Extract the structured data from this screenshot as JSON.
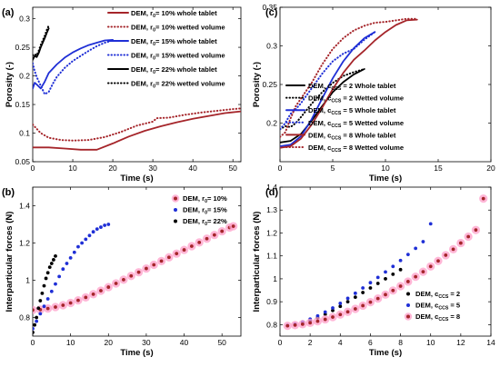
{
  "chart_data": [
    {
      "panel": "(a)",
      "type": "line",
      "xlabel": "Time (s)",
      "ylabel": "Porosity (-)",
      "xlim": [
        0,
        52
      ],
      "ylim": [
        0.05,
        0.32
      ],
      "xticks": [
        "0",
        "10",
        "20",
        "30",
        "40",
        "50"
      ],
      "yticks": [
        "0.05",
        "0.1",
        "0.15",
        "0.2",
        "0.25",
        "0.3"
      ],
      "legend_position": "top-right",
      "series": [
        {
          "name": "DEM, r_0= 10% whole tablet",
          "label_pre": "DEM, r",
          "label_sub": "0",
          "label_post": "= 10% whole tablet",
          "color": "#a5252a",
          "style": "solid",
          "x": [
            0,
            4,
            8,
            12,
            16,
            20,
            24,
            28,
            32,
            36,
            40,
            44,
            48,
            52
          ],
          "y": [
            0.075,
            0.075,
            0.073,
            0.071,
            0.071,
            0.082,
            0.094,
            0.104,
            0.112,
            0.119,
            0.125,
            0.13,
            0.135,
            0.138
          ]
        },
        {
          "name": "DEM, r_0= 10% wetted volume",
          "label_pre": "DEM, r",
          "label_sub": "0",
          "label_post": "= 10% wetted volume",
          "color": "#a5252a",
          "style": "dotted",
          "x": [
            0,
            2,
            4,
            7,
            10,
            14,
            18,
            22,
            26,
            30,
            31,
            34,
            38,
            42,
            46,
            50,
            52
          ],
          "y": [
            0.115,
            0.1,
            0.092,
            0.088,
            0.087,
            0.088,
            0.093,
            0.102,
            0.113,
            0.12,
            0.126,
            0.127,
            0.132,
            0.136,
            0.139,
            0.142,
            0.143
          ]
        },
        {
          "name": "DEM, r_0= 15% whole tablet",
          "label_pre": "DEM, r",
          "label_sub": "0",
          "label_post": "= 15% whole tablet",
          "color": "#1f2fd6",
          "style": "solid",
          "x": [
            0,
            0.5,
            1,
            2,
            3,
            4,
            6,
            8,
            10,
            12,
            14,
            16,
            18,
            20
          ],
          "y": [
            0.178,
            0.188,
            0.185,
            0.178,
            0.19,
            0.205,
            0.22,
            0.232,
            0.241,
            0.248,
            0.254,
            0.258,
            0.262,
            0.263
          ]
        },
        {
          "name": "DEM, r_0= 15% wetted volume",
          "label_pre": "DEM, r",
          "label_sub": "0",
          "label_post": "= 15% wetted volume",
          "color": "#1f2fd6",
          "style": "dotted",
          "x": [
            0,
            0.5,
            1,
            2,
            3,
            4,
            5,
            6,
            8,
            10,
            12,
            14,
            16,
            18,
            20
          ],
          "y": [
            0.222,
            0.208,
            0.198,
            0.183,
            0.168,
            0.172,
            0.186,
            0.198,
            0.214,
            0.226,
            0.235,
            0.244,
            0.252,
            0.258,
            0.262
          ]
        },
        {
          "name": "DEM, r_0= 22% whole tablet",
          "label_pre": "DEM, r",
          "label_sub": "0",
          "label_post": "= 22% whole tablet",
          "color": "#000000",
          "style": "solid",
          "x": [
            0,
            0.5,
            1,
            1.5,
            2,
            2.5,
            3,
            3.5,
            4
          ],
          "y": [
            0.228,
            0.235,
            0.233,
            0.24,
            0.25,
            0.258,
            0.266,
            0.275,
            0.283
          ]
        },
        {
          "name": "DEM, r_0= 22% wetted volume",
          "label_pre": "DEM, r",
          "label_sub": "0",
          "label_post": "= 22% wetted volume",
          "color": "#000000",
          "style": "dotted",
          "x": [
            0,
            0.5,
            1,
            1.5,
            2,
            2.5,
            3,
            3.5,
            4
          ],
          "y": [
            0.236,
            0.238,
            0.236,
            0.244,
            0.254,
            0.262,
            0.27,
            0.28,
            0.288
          ]
        }
      ]
    },
    {
      "panel": "(b)",
      "type": "scatter",
      "xlabel": "Time (s)",
      "ylabel": "Interparticular forces (N)",
      "xlim": [
        0,
        55
      ],
      "ylim": [
        0.7,
        1.5
      ],
      "xticks": [
        "0",
        "10",
        "20",
        "30",
        "40",
        "50"
      ],
      "yticks": [
        "0.8",
        "1",
        "1.2",
        "1.4"
      ],
      "legend_position": "top-right",
      "series": [
        {
          "name": "DEM, r_0= 10%",
          "label_pre": "DEM, r",
          "label_sub": "0",
          "label_post": "= 10%",
          "color": "#a5252a",
          "halo": "#ff9fc9",
          "x": [
            0,
            2,
            4,
            6,
            8,
            10,
            12,
            14,
            16,
            18,
            20,
            22,
            24,
            26,
            28,
            30,
            32,
            34,
            36,
            38,
            40,
            42,
            44,
            46,
            48,
            50,
            52,
            53
          ],
          "y": [
            0.84,
            0.842,
            0.848,
            0.856,
            0.866,
            0.878,
            0.892,
            0.908,
            0.925,
            0.944,
            0.963,
            0.983,
            1.003,
            1.023,
            1.043,
            1.063,
            1.083,
            1.103,
            1.123,
            1.143,
            1.163,
            1.183,
            1.203,
            1.223,
            1.243,
            1.263,
            1.283,
            1.29
          ]
        },
        {
          "name": "DEM, r_0= 15%",
          "label_pre": "DEM, r",
          "label_sub": "0",
          "label_post": "= 15%",
          "color": "#1f2fd6",
          "x": [
            0,
            1,
            2,
            3,
            4,
            5,
            6,
            7,
            8,
            9,
            10,
            11,
            12,
            13,
            14,
            15,
            16,
            17,
            18,
            19,
            20
          ],
          "y": [
            0.74,
            0.78,
            0.82,
            0.86,
            0.9,
            0.94,
            0.98,
            1.02,
            1.06,
            1.09,
            1.12,
            1.15,
            1.18,
            1.2,
            1.22,
            1.24,
            1.26,
            1.275,
            1.285,
            1.295,
            1.3
          ]
        },
        {
          "name": "DEM, r_0= 22%",
          "label_pre": "DEM, r",
          "label_sub": "0",
          "label_post": "= 22%",
          "color": "#000000",
          "x": [
            0,
            0.5,
            1,
            1.5,
            2,
            2.5,
            3,
            3.5,
            4,
            4.5,
            5,
            5.5,
            6
          ],
          "y": [
            0.72,
            0.76,
            0.8,
            0.85,
            0.89,
            0.93,
            0.97,
            1.01,
            1.04,
            1.07,
            1.09,
            1.11,
            1.13
          ]
        }
      ]
    },
    {
      "panel": "(c)",
      "type": "line",
      "xlabel": "Time (s)",
      "ylabel": "Porosity (-)",
      "xlim": [
        0,
        20
      ],
      "ylim": [
        0.15,
        0.35
      ],
      "xticks": [
        "0",
        "5",
        "10",
        "15",
        "20"
      ],
      "yticks": [
        "0.2",
        "0.25",
        "0.3",
        "0.35"
      ],
      "legend_position": "bottom-left",
      "series": [
        {
          "name": "DEM, c_CCS = 2 Whole tablet",
          "label_pre": "DEM, c",
          "label_sub": "CCS",
          "label_post": " = 2 Whole tablet",
          "color": "#000000",
          "style": "solid",
          "x": [
            0,
            1,
            2,
            3,
            4,
            5,
            6,
            7,
            8
          ],
          "y": [
            0.175,
            0.177,
            0.186,
            0.203,
            0.222,
            0.24,
            0.253,
            0.263,
            0.27
          ]
        },
        {
          "name": "DEM, c_CCS = 2 Wetted volume",
          "label_pre": "DEM, c",
          "label_sub": "CCS",
          "label_post": " = 2 Wetted volume",
          "color": "#000000",
          "style": "dotted",
          "x": [
            0,
            0.5,
            1,
            1.5,
            2,
            3,
            4,
            5,
            6,
            7,
            8
          ],
          "y": [
            0.192,
            0.196,
            0.195,
            0.2,
            0.208,
            0.225,
            0.24,
            0.252,
            0.261,
            0.266,
            0.27
          ]
        },
        {
          "name": "DEM, c_CCS = 5 Whole tablet",
          "label_pre": "DEM, c",
          "label_sub": "CCS",
          "label_post": " = 5 Whole tablet",
          "color": "#1f2fd6",
          "style": "solid",
          "x": [
            0,
            1,
            2,
            3,
            4,
            5,
            6,
            7,
            8,
            9
          ],
          "y": [
            0.17,
            0.172,
            0.183,
            0.205,
            0.232,
            0.258,
            0.28,
            0.297,
            0.31,
            0.318
          ]
        },
        {
          "name": "DEM, c_CCS = 5 Wetted volume",
          "label_pre": "DEM, c",
          "label_sub": "CCS",
          "label_post": " = 5 Wetted volume",
          "color": "#1f2fd6",
          "style": "dotted",
          "x": [
            0,
            0.5,
            1,
            1.5,
            2,
            3,
            4,
            5,
            6,
            7,
            8,
            9
          ],
          "y": [
            0.192,
            0.2,
            0.212,
            0.218,
            0.226,
            0.245,
            0.264,
            0.28,
            0.29,
            0.296,
            0.308,
            0.318
          ]
        },
        {
          "name": "DEM, c_CCS = 8 Whole tablet",
          "label_pre": "DEM, c",
          "label_sub": "CCS",
          "label_post": " = 8 Whole tablet",
          "color": "#a5252a",
          "style": "solid",
          "x": [
            0,
            1,
            2,
            3,
            4,
            5,
            6,
            7,
            8,
            9,
            10,
            11,
            12,
            13
          ],
          "y": [
            0.168,
            0.17,
            0.18,
            0.198,
            0.22,
            0.244,
            0.265,
            0.282,
            0.294,
            0.307,
            0.318,
            0.327,
            0.333,
            0.334
          ]
        },
        {
          "name": "DEM, c_CCS = 8 Wetted volume",
          "label_pre": "DEM, c",
          "label_sub": "CCS",
          "label_post": " = 8 Wetted volume",
          "color": "#a5252a",
          "style": "dotted",
          "x": [
            0,
            0.5,
            1,
            1.5,
            2,
            3,
            4,
            5,
            6,
            7,
            8,
            9,
            10,
            11,
            12,
            13
          ],
          "y": [
            0.182,
            0.188,
            0.206,
            0.222,
            0.232,
            0.252,
            0.276,
            0.296,
            0.31,
            0.32,
            0.326,
            0.33,
            0.331,
            0.333,
            0.335,
            0.335
          ]
        }
      ]
    },
    {
      "panel": "(d)",
      "type": "scatter",
      "xlabel": "Time (s)",
      "ylabel": "Interparticular forces (N)",
      "xlim": [
        0,
        14
      ],
      "ylim": [
        0.75,
        1.4
      ],
      "xticks": [
        "0",
        "2",
        "4",
        "6",
        "8",
        "10",
        "12",
        "14"
      ],
      "yticks": [
        "0.8",
        "0.9",
        "1",
        "1.1",
        "1.2",
        "1.3",
        "1.4"
      ],
      "legend_position": "bottom-right",
      "series": [
        {
          "name": "DEM, c_CCS = 2",
          "label_pre": "DEM, c",
          "label_sub": "CCS",
          "label_post": " = 2",
          "color": "#000000",
          "x": [
            0.5,
            1,
            1.5,
            2,
            2.5,
            3,
            3.5,
            4,
            4.5,
            5,
            5.5,
            6,
            6.5,
            7,
            7.5,
            8
          ],
          "y": [
            0.795,
            0.8,
            0.808,
            0.818,
            0.83,
            0.845,
            0.862,
            0.88,
            0.9,
            0.92,
            0.94,
            0.96,
            0.98,
            1.0,
            1.02,
            1.04
          ]
        },
        {
          "name": "DEM, c_CCS = 5",
          "label_pre": "DEM, c",
          "label_sub": "CCS",
          "label_post": " = 5",
          "color": "#1f2fd6",
          "x": [
            0.5,
            1,
            1.5,
            2,
            2.5,
            3,
            3.5,
            4,
            4.5,
            5,
            5.5,
            6,
            6.5,
            7,
            7.5,
            8,
            8.5,
            9,
            9.5,
            10
          ],
          "y": [
            0.797,
            0.803,
            0.812,
            0.824,
            0.838,
            0.855,
            0.873,
            0.893,
            0.915,
            0.937,
            0.96,
            0.983,
            1.006,
            1.03,
            1.054,
            1.08,
            1.106,
            1.133,
            1.162,
            1.24
          ]
        },
        {
          "name": "DEM, c_CCS = 8",
          "label_pre": "DEM, c",
          "label_sub": "CCS",
          "label_post": " = 8",
          "color": "#a5252a",
          "halo": "#ff9fc9",
          "x": [
            0.5,
            1,
            1.5,
            2,
            2.5,
            3,
            3.5,
            4,
            4.5,
            5,
            5.5,
            6,
            6.5,
            7,
            7.5,
            8,
            8.5,
            9,
            9.5,
            10,
            10.5,
            11,
            11.5,
            12,
            12.5,
            13,
            13.5
          ],
          "y": [
            0.795,
            0.798,
            0.802,
            0.808,
            0.815,
            0.823,
            0.833,
            0.844,
            0.856,
            0.869,
            0.883,
            0.898,
            0.914,
            0.931,
            0.949,
            0.968,
            0.988,
            1.009,
            1.031,
            1.054,
            1.078,
            1.103,
            1.129,
            1.156,
            1.184,
            1.213,
            1.35
          ]
        }
      ]
    }
  ]
}
